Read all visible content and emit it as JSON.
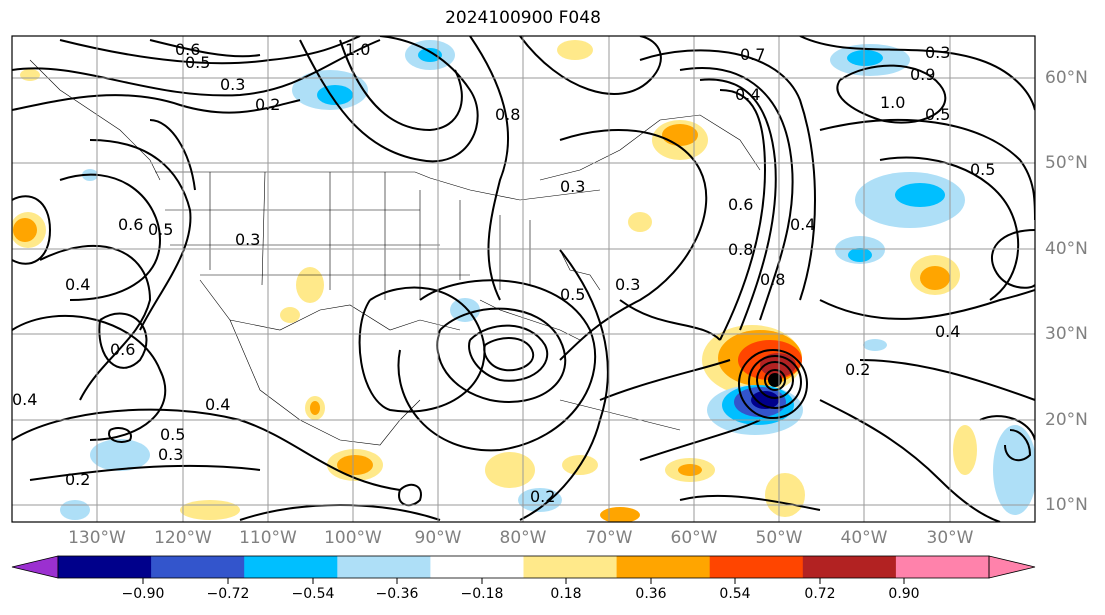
{
  "title": "2024100900 F048",
  "lat_labels": [
    "60°N",
    "50°N",
    "40°N",
    "30°N",
    "20°N",
    "10°N"
  ],
  "lon_labels": [
    "130°W",
    "120°W",
    "110°W",
    "100°W",
    "90°W",
    "80°W",
    "70°W",
    "60°W",
    "50°W",
    "40°W",
    "30°W"
  ],
  "contour_labels": [
    "0.6",
    "0.5",
    "0.3",
    "0.2",
    "1.0",
    "0.8",
    "0.7",
    "0.4",
    "0.3",
    "0.9",
    "0.5",
    "0.3",
    "0.6",
    "0.5",
    "0.3",
    "0.8",
    "0.4",
    "0.6",
    "0.4",
    "0.5",
    "0.3",
    "0.2",
    "0.2",
    "0.4",
    "0.3",
    "0.5",
    "0.6",
    "0.8",
    "0.4",
    "0.2",
    "0.4",
    "0.5",
    "1.0"
  ],
  "colorbar": {
    "ticks": [
      "−0.90",
      "−0.72",
      "−0.54",
      "−0.36",
      "−0.18",
      "0.18",
      "0.36",
      "0.54",
      "0.72",
      "0.90"
    ],
    "colors": [
      "#9b30d0",
      "#00008b",
      "#3355cc",
      "#00bfff",
      "#aedff7",
      "#ffffff",
      "#ffe98a",
      "#ffa500",
      "#ff4500",
      "#b22222",
      "#ff82ab"
    ]
  }
}
